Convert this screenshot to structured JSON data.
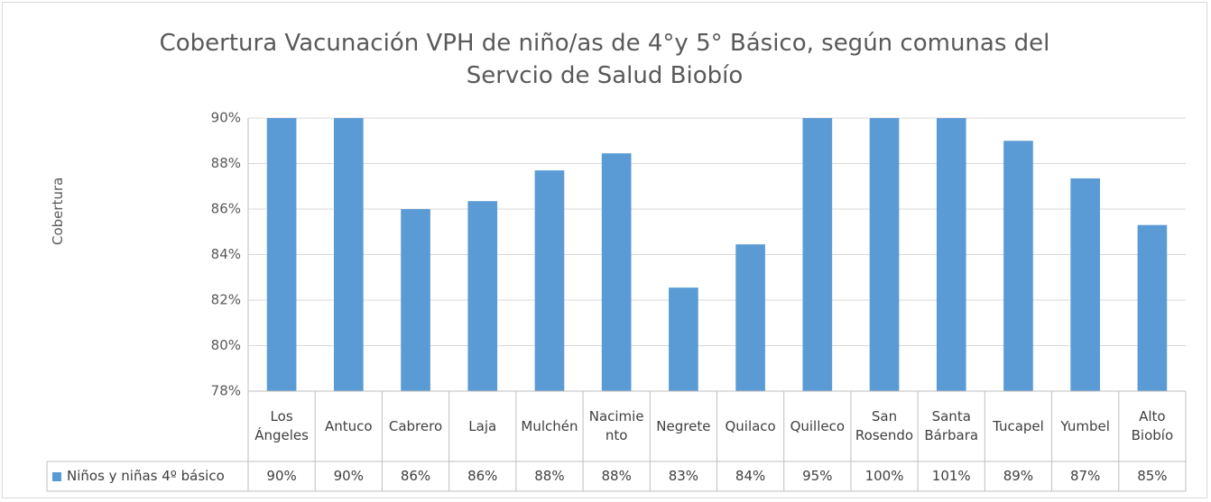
{
  "chart_data": {
    "type": "bar",
    "title": "Cobertura Vacunación VPH de niño/as de 4°y 5° Básico, según comunas del Servcio de Salud Biobío",
    "y_label": "Cobertura",
    "categories": [
      "Los Ángeles",
      "Antuco",
      "Cabrero",
      "Laja",
      "Mulchén",
      "Nacimiento",
      "Negrete",
      "Quilaco",
      "Quilleco",
      "San Rosendo",
      "Santa Bárbara",
      "Tucapel",
      "Yumbel",
      "Alto Biobío"
    ],
    "series": [
      {
        "name": "Niños y niñas 4º básico",
        "color": "#5b9bd5",
        "values": [
          90,
          90,
          86,
          86.35,
          87.7,
          88.45,
          82.55,
          84.45,
          95,
          100,
          101,
          89,
          87.35,
          85.3
        ],
        "value_labels": [
          "90%",
          "90%",
          "86%",
          "86%",
          "88%",
          "88%",
          "83%",
          "84%",
          "95%",
          "100%",
          "101%",
          "89%",
          "87%",
          "85%"
        ]
      }
    ],
    "ylim": [
      78,
      90
    ],
    "yticks": [
      {
        "value": 78,
        "label": "78%"
      },
      {
        "value": 80,
        "label": "80%"
      },
      {
        "value": 82,
        "label": "82%"
      },
      {
        "value": 84,
        "label": "84%"
      },
      {
        "value": 86,
        "label": "86%"
      },
      {
        "value": 88,
        "label": "88%"
      },
      {
        "value": 90,
        "label": "90%"
      }
    ],
    "grid": true
  }
}
